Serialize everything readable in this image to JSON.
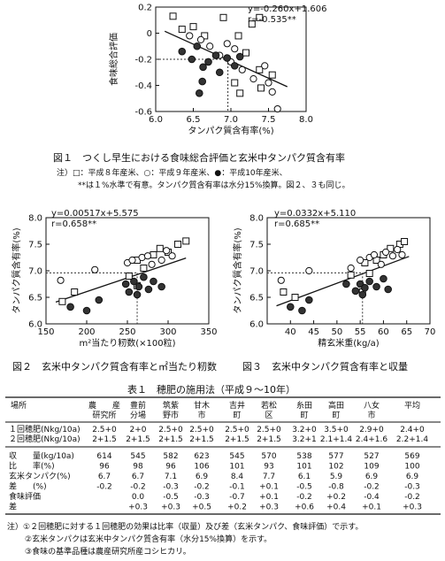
{
  "fig1": {
    "chart_data": {
      "type": "scatter",
      "xlabel": "タンパク質含有率(%)",
      "ylabel": "食味総合評価",
      "xlim": [
        6.0,
        8.0
      ],
      "ylim": [
        -0.6,
        0.2
      ],
      "xticks": [
        "6.0",
        "6.5",
        "7.0",
        "7.5",
        "8.0"
      ],
      "yticks": [
        "0.2",
        "0",
        "-0.2",
        "-0.4",
        "-0.6"
      ],
      "equation": "y=-0.260x+1.606",
      "r": "r=-0.535**",
      "trend": [
        [
          6.12,
          0.015
        ],
        [
          7.75,
          -0.41
        ]
      ],
      "ref_x": 6.96,
      "ref_y": -0.2,
      "series": [
        {
          "marker": "square",
          "points": [
            [
              6.23,
              0.13
            ],
            [
              6.35,
              0.03
            ],
            [
              6.5,
              0.05
            ],
            [
              6.65,
              -0.02
            ],
            [
              6.9,
              0.12
            ],
            [
              7.1,
              -0.02
            ],
            [
              7.28,
              0.07
            ],
            [
              7.38,
              0.12
            ],
            [
              7.2,
              -0.15
            ],
            [
              7.38,
              -0.28
            ],
            [
              7.05,
              -0.38
            ],
            [
              7.12,
              -0.46
            ],
            [
              7.55,
              -0.32
            ],
            [
              7.4,
              -0.42
            ]
          ]
        },
        {
          "marker": "circle",
          "points": [
            [
              6.45,
              -0.02
            ],
            [
              6.6,
              -0.05
            ],
            [
              6.72,
              -0.1
            ],
            [
              6.85,
              -0.17
            ],
            [
              6.95,
              -0.08
            ],
            [
              7.0,
              -0.22
            ],
            [
              7.05,
              -0.12
            ],
            [
              7.15,
              -0.28
            ],
            [
              7.3,
              -0.35
            ],
            [
              7.45,
              -0.25
            ],
            [
              7.5,
              -0.38
            ],
            [
              7.55,
              -0.45
            ],
            [
              7.62,
              -0.58
            ]
          ]
        },
        {
          "marker": "filled",
          "points": [
            [
              6.35,
              -0.14
            ],
            [
              6.48,
              -0.2
            ],
            [
              6.55,
              -0.1
            ],
            [
              6.63,
              -0.26
            ],
            [
              6.7,
              -0.22
            ],
            [
              6.8,
              -0.17
            ],
            [
              6.85,
              -0.3
            ],
            [
              6.95,
              -0.19
            ],
            [
              7.05,
              -0.25
            ],
            [
              7.12,
              -0.18
            ],
            [
              6.62,
              -0.37
            ],
            [
              6.58,
              -0.46
            ]
          ]
        }
      ]
    },
    "caption": "図１　つくし早生における食味総合評価と玄米中タンパク質含有率",
    "note1": "注）□：平成８年産米、○：平成９年産米、●：平成10年産米、",
    "note2": "**は１%水準で有意。タンパク質含有率は水分15%換算。図２、３も同じ。"
  },
  "fig2": {
    "chart_data": {
      "type": "scatter",
      "xlabel": "m²当たり籾数(×100粒)",
      "ylabel": "タンパク質含有率(%)",
      "xlim": [
        150,
        350
      ],
      "ylim": [
        6.0,
        8.0
      ],
      "xticks": [
        "150",
        "200",
        "250",
        "300",
        "350"
      ],
      "yticks": [
        "8.0",
        "7.5",
        "7.0",
        "6.5",
        "6.0"
      ],
      "equation": "y=0.00517x+5.575",
      "r": "r=0.658**",
      "trend": [
        [
          162,
          6.41
        ],
        [
          322,
          7.24
        ]
      ],
      "ref_x": 262,
      "ref_y": 6.96,
      "series": [
        {
          "marker": "square",
          "points": [
            [
              170,
              6.42
            ],
            [
              185,
              6.6
            ],
            [
              252,
              6.9
            ],
            [
              262,
              7.2
            ],
            [
              270,
              7.05
            ],
            [
              282,
              7.3
            ],
            [
              290,
              7.42
            ],
            [
              300,
              7.35
            ],
            [
              312,
              7.5
            ],
            [
              322,
              7.56
            ],
            [
              262,
              6.72
            ]
          ]
        },
        {
          "marker": "circle",
          "points": [
            [
              168,
              6.82
            ],
            [
              210,
              7.02
            ],
            [
              250,
              7.15
            ],
            [
              256,
              7.2
            ],
            [
              268,
              7.25
            ],
            [
              275,
              7.28
            ],
            [
              280,
              7.12
            ],
            [
              292,
              7.2
            ],
            [
              298,
              7.38
            ],
            [
              305,
              7.28
            ]
          ]
        },
        {
          "marker": "filled",
          "points": [
            [
              180,
              6.32
            ],
            [
              200,
              6.25
            ],
            [
              215,
              6.45
            ],
            [
              248,
              6.75
            ],
            [
              252,
              6.6
            ],
            [
              258,
              6.8
            ],
            [
              264,
              6.7
            ],
            [
              270,
              6.88
            ],
            [
              276,
              6.65
            ],
            [
              282,
              6.8
            ],
            [
              292,
              6.7
            ],
            [
              262,
              6.55
            ]
          ]
        }
      ],
      "caption": "図２　玄米中タンパク質含有率と㎡当たり籾数"
    }
  },
  "fig3": {
    "chart_data": {
      "type": "scatter",
      "xlabel": "精玄米重(kg/a)",
      "ylabel": "タンパク質含有率(%)",
      "xlim": [
        35,
        70
      ],
      "ylim": [
        6.0,
        8.0
      ],
      "xticks": [
        "40",
        "45",
        "50",
        "55",
        "60",
        "65",
        "70"
      ],
      "yticks": [
        "8.0",
        "7.5",
        "7.0",
        "6.5",
        "6.0"
      ],
      "equation": "y=0.0332x+5.110",
      "r": "r=0.685**",
      "trend": [
        [
          37,
          6.34
        ],
        [
          65.5,
          7.27
        ]
      ],
      "ref_x": 55.5,
      "ref_y": 6.96,
      "series": [
        {
          "marker": "square",
          "points": [
            [
              38.5,
              6.6
            ],
            [
              41,
              6.5
            ],
            [
              53,
              6.92
            ],
            [
              56,
              7.15
            ],
            [
              57,
              6.95
            ],
            [
              58.5,
              7.2
            ],
            [
              60,
              7.3
            ],
            [
              61.5,
              7.42
            ],
            [
              63.5,
              7.5
            ],
            [
              64.5,
              7.55
            ],
            [
              55.5,
              6.6
            ]
          ]
        },
        {
          "marker": "circle",
          "points": [
            [
              38,
              6.82
            ],
            [
              44,
              7.0
            ],
            [
              53,
              7.05
            ],
            [
              55,
              7.2
            ],
            [
              57,
              7.25
            ],
            [
              58,
              7.3
            ],
            [
              59.5,
              7.12
            ],
            [
              60.5,
              7.35
            ],
            [
              62,
              7.28
            ],
            [
              63,
              7.4
            ],
            [
              64,
              7.3
            ]
          ]
        },
        {
          "marker": "filled",
          "points": [
            [
              40,
              6.32
            ],
            [
              42.5,
              6.25
            ],
            [
              44,
              6.45
            ],
            [
              52,
              6.75
            ],
            [
              54,
              6.62
            ],
            [
              55,
              6.75
            ],
            [
              56,
              6.68
            ],
            [
              57,
              6.8
            ],
            [
              58.5,
              6.7
            ],
            [
              60,
              6.85
            ],
            [
              61,
              6.65
            ],
            [
              55.5,
              6.55
            ]
          ]
        }
      ],
      "caption": "図３　玄米中タンパク質含有率と収量"
    }
  },
  "table": {
    "title": "表１　穂肥の施用法（平成９～10年）",
    "col_header_line1": [
      "場所",
      "農　　産",
      "豊前",
      "筑紫",
      "甘木",
      "吉井",
      "若松",
      "糸田",
      "高田",
      "八女",
      "平均"
    ],
    "col_header_line2": [
      "",
      "研究所",
      "分場",
      "野市",
      "市",
      "町",
      "区",
      "町",
      "町",
      "市",
      ""
    ],
    "application_rows": [
      {
        "label": "１回穂肥(Nkg/10a)",
        "values": [
          "2.5+0",
          "2+0",
          "2.5+0",
          "2.5+0",
          "2.5+0",
          "2.5+0",
          "3.2+0",
          "3.5+0",
          "2.9+0",
          "2.4+0"
        ]
      },
      {
        "label": "２回穂肥(Nkg/10a)",
        "values": [
          "2+1.5",
          "2+1.5",
          "2+1.5",
          "2+1.5",
          "2+1.5",
          "2+1.5",
          "3.2+1",
          "2.1+1.4",
          "2.4+1.6",
          "2.2+1.4"
        ]
      }
    ],
    "result_rows": [
      {
        "label": "収　　量(kg/10a)",
        "values": [
          "614",
          "545",
          "582",
          "623",
          "545",
          "570",
          "538",
          "577",
          "527",
          "569"
        ]
      },
      {
        "label": "比　　率(%)",
        "values": [
          "96",
          "98",
          "96",
          "106",
          "101",
          "93",
          "101",
          "102",
          "109",
          "100"
        ]
      },
      {
        "label": "玄米タンパク(%)",
        "values": [
          "6.7",
          "6.7",
          "7.1",
          "6.9",
          "8.4",
          "7.7",
          "6.1",
          "5.9",
          "6.9",
          "6.9"
        ]
      },
      {
        "label": "差　　(%)",
        "values": [
          "-0.2",
          "-0.2",
          "-0.3",
          "-0.2",
          "-0.1",
          "+0.1",
          "-0.5",
          "-0.8",
          "-0.2",
          "-0.3"
        ]
      },
      {
        "label": "食味評価",
        "values": [
          "",
          "0.0",
          "-0.5",
          "-0.3",
          "-0.7",
          "+0.1",
          "-0.2",
          "+0.2",
          "-0.4",
          "-0.2"
        ]
      },
      {
        "label": "差",
        "values": [
          "",
          "+0.3",
          "+0.3",
          "+0.5",
          "+0.2",
          "+0.3",
          "+0.6",
          "+0.4",
          "+0.1",
          "+0.3"
        ]
      }
    ],
    "footnotes": [
      "注）①２回穂肥に対する１回穂肥の効果は比率（収量）及び差（玄米タンパク、食味評価）で示す。",
      "②玄米タンパクは玄米中タンパク質含有率（水分15%換算）を示す。",
      "③食味の基準品種は農産研究所産コシヒカリ。"
    ]
  }
}
